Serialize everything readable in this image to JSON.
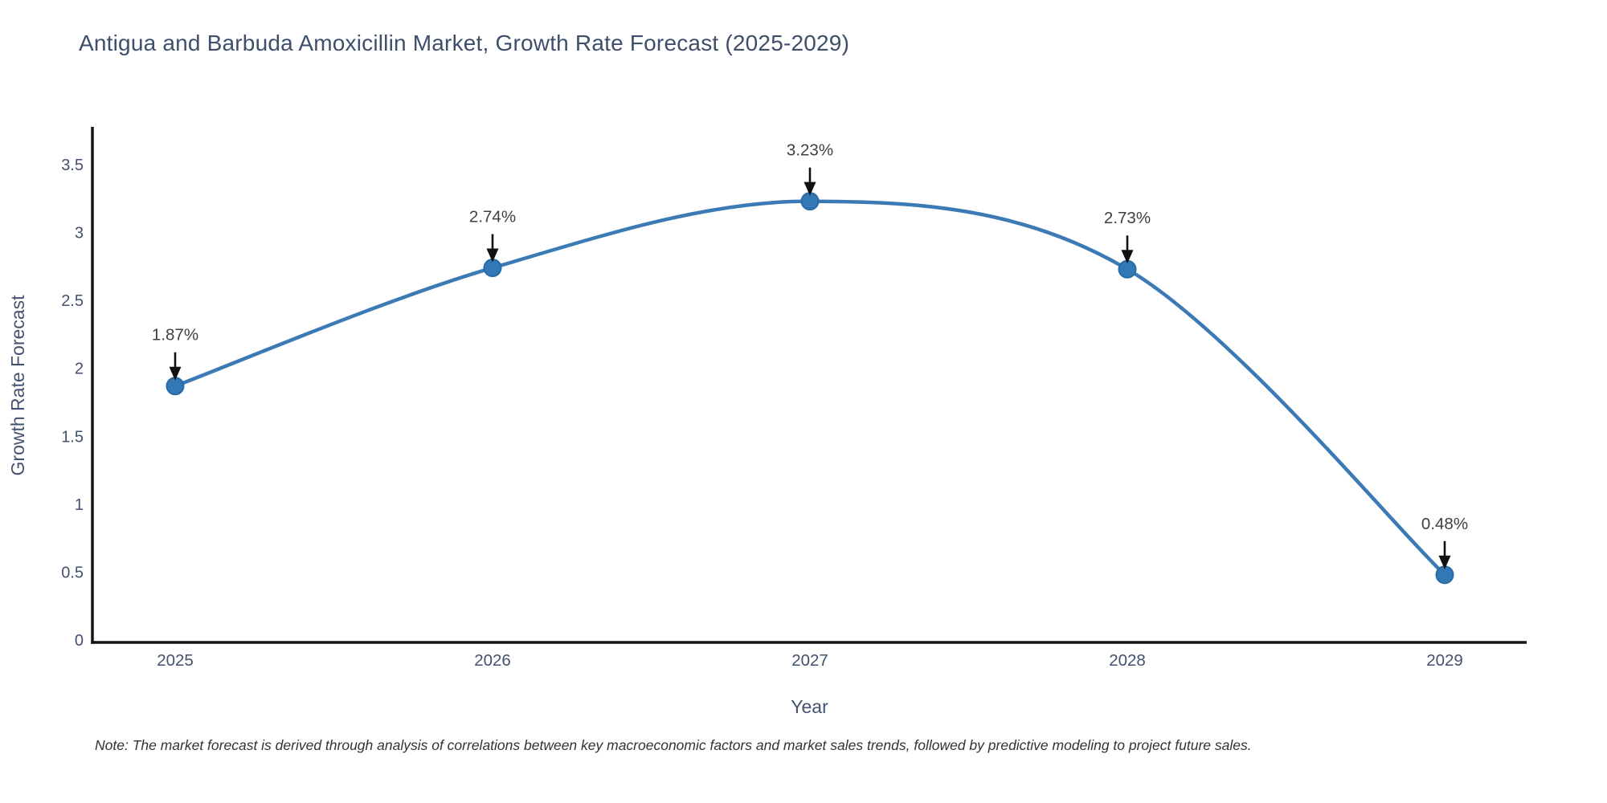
{
  "title": "Antigua and Barbuda Amoxicillin Market, Growth Rate Forecast (2025-2029)",
  "note": "Note: The market forecast is derived through analysis of correlations between key macroeconomic factors and market sales trends, followed by predictive modeling to project future sales.",
  "chart_data": {
    "type": "line",
    "title": "Antigua and Barbuda Amoxicillin Market, Growth Rate Forecast (2025-2029)",
    "xlabel": "Year",
    "ylabel": "Growth Rate Forecast",
    "x": [
      "2025",
      "2026",
      "2027",
      "2028",
      "2029"
    ],
    "values": [
      1.87,
      2.74,
      3.23,
      2.73,
      0.48
    ],
    "point_labels": [
      "1.87%",
      "2.74%",
      "3.23%",
      "2.73%",
      "0.48%"
    ],
    "yticks": [
      0,
      0.5,
      1,
      1.5,
      2,
      2.5,
      3,
      3.5
    ],
    "ylim": [
      0,
      3.78
    ],
    "grid": false,
    "legend": "none",
    "line_shape": "spline",
    "annotations_arrow": "down-arrow-to-point",
    "colors": {
      "line": "#3b7ab5",
      "marker_fill": "#3178b5",
      "marker_stroke": "#2a6aa3",
      "axis_line": "#141414",
      "tick_text": "#42526e",
      "axis_title_text": "#42526e",
      "annotation_text": "#3f3f3f",
      "arrow": "#111111",
      "title_text": "#3e4f6b",
      "background": "#ffffff"
    }
  }
}
